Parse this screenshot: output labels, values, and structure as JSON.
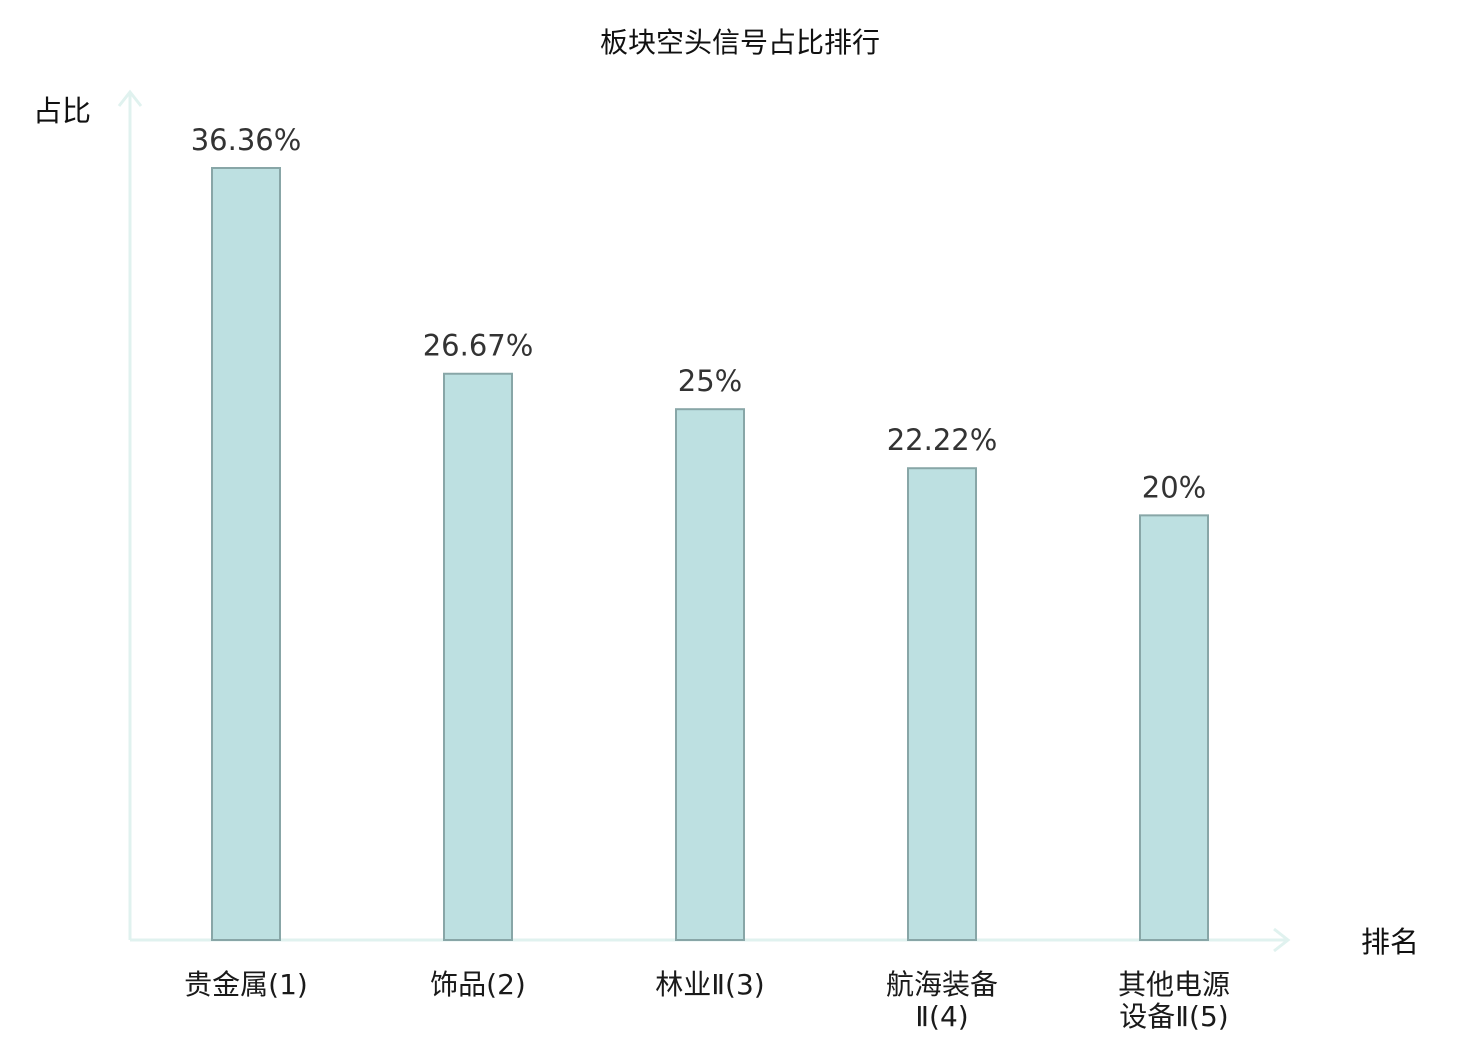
{
  "chart_data": {
    "type": "bar",
    "title": "板块空头信号占比排行",
    "ylabel": "占比",
    "xlabel": "排名",
    "categories": [
      [
        "贵金属(1)"
      ],
      [
        "饰品(2)"
      ],
      [
        "林业Ⅱ(3)"
      ],
      [
        "航海装备",
        "Ⅱ(4)"
      ],
      [
        "其他电源",
        "设备Ⅱ(5)"
      ]
    ],
    "values": [
      36.36,
      26.67,
      25,
      22.22,
      20
    ],
    "value_labels": [
      "36.36%",
      "26.67%",
      "25%",
      "22.22%",
      "20%"
    ],
    "ylim": [
      0,
      40
    ],
    "grid": false,
    "colors": {
      "bar_fill": "#bde0e1",
      "bar_stroke": "#88a6a7",
      "axis": "#e0f2ef",
      "highlight_label": "#e02020",
      "label": "#1a1a1a"
    },
    "highlight_index": 0
  }
}
